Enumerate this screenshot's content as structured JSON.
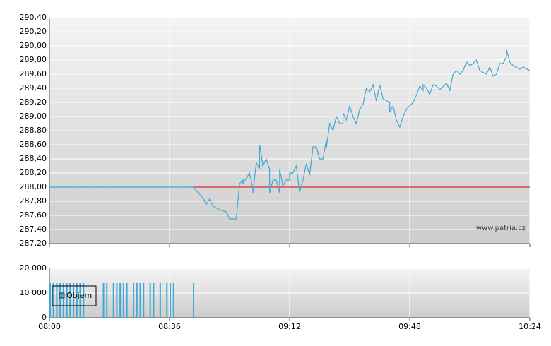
{
  "chart_data": [
    {
      "type": "line",
      "x": [
        "08:00",
        "08:43",
        "08:46",
        "08:47",
        "08:48",
        "08:49",
        "08:51",
        "08:53",
        "08:54",
        "08:56",
        "08:57",
        "08:58",
        "08:58",
        "09:00",
        "09:01",
        "09:01",
        "09:02",
        "09:03",
        "09:03",
        "09:04",
        "09:05",
        "09:06",
        "09:06",
        "09:07",
        "09:08",
        "09:09",
        "09:09",
        "09:10",
        "09:11",
        "09:12",
        "09:12",
        "09:13",
        "09:14",
        "09:15",
        "09:16",
        "09:17",
        "09:18",
        "09:19",
        "09:20",
        "09:21",
        "09:22",
        "09:23",
        "09:23",
        "09:24",
        "09:25",
        "09:26",
        "09:27",
        "09:28",
        "09:28",
        "09:29",
        "09:30",
        "09:31",
        "09:32",
        "09:33",
        "09:34",
        "09:35",
        "09:36",
        "09:37",
        "09:38",
        "09:39",
        "09:40",
        "09:42",
        "09:42",
        "09:43",
        "09:44",
        "09:45",
        "09:46",
        "09:47",
        "09:48",
        "09:49",
        "09:50",
        "09:51",
        "09:52",
        "09:52",
        "09:53",
        "09:54",
        "09:55",
        "09:56",
        "09:57",
        "09:59",
        "10:00",
        "10:01",
        "10:02",
        "10:03",
        "10:04",
        "10:05",
        "10:06",
        "10:07",
        "10:08",
        "10:09",
        "10:11",
        "10:12",
        "10:13",
        "10:14",
        "10:15",
        "10:16",
        "10:17",
        "10:17",
        "10:18",
        "10:19",
        "10:21",
        "10:22",
        "10:24"
      ],
      "values": [
        288.0,
        288.0,
        287.85,
        287.75,
        287.83,
        287.73,
        287.68,
        287.65,
        287.55,
        287.55,
        288.05,
        288.1,
        288.05,
        288.2,
        287.97,
        287.92,
        288.35,
        288.25,
        288.6,
        288.3,
        288.4,
        288.25,
        287.92,
        288.1,
        288.1,
        287.92,
        288.25,
        288.02,
        288.1,
        288.1,
        288.2,
        288.2,
        288.3,
        287.93,
        288.1,
        288.33,
        288.17,
        288.57,
        288.57,
        288.4,
        288.4,
        288.67,
        288.55,
        288.9,
        288.8,
        289.0,
        288.9,
        288.9,
        289.05,
        288.95,
        289.15,
        289.0,
        288.9,
        289.1,
        289.17,
        289.4,
        289.35,
        289.45,
        289.22,
        289.45,
        289.25,
        289.2,
        289.07,
        289.15,
        288.95,
        288.85,
        289.0,
        289.1,
        289.15,
        289.2,
        289.3,
        289.43,
        289.37,
        289.45,
        289.4,
        289.32,
        289.45,
        289.43,
        289.38,
        289.47,
        289.37,
        289.6,
        289.65,
        289.6,
        289.65,
        289.77,
        289.72,
        289.75,
        289.8,
        289.65,
        289.6,
        289.7,
        289.57,
        289.6,
        289.75,
        289.75,
        289.85,
        289.95,
        289.77,
        289.72,
        289.67,
        289.7,
        289.65
      ],
      "color": "#3fa9d5",
      "reference_line": {
        "value": 288.0,
        "color": "#e00000"
      },
      "xlim": [
        "08:00",
        "10:24"
      ],
      "ylim": [
        287.2,
        290.4
      ],
      "yticks": [
        {
          "value": 287.2,
          "label": "287,20"
        },
        {
          "value": 287.4,
          "label": "287,40"
        },
        {
          "value": 287.6,
          "label": "287,60"
        },
        {
          "value": 287.8,
          "label": "287,80"
        },
        {
          "value": 288.0,
          "label": "288,00"
        },
        {
          "value": 288.2,
          "label": "288,20"
        },
        {
          "value": 288.4,
          "label": "288,40"
        },
        {
          "value": 288.6,
          "label": "288,60"
        },
        {
          "value": 288.8,
          "label": "288,80"
        },
        {
          "value": 289.0,
          "label": "289,00"
        },
        {
          "value": 289.2,
          "label": "289,20"
        },
        {
          "value": 289.4,
          "label": "289,40"
        },
        {
          "value": 289.6,
          "label": "289,60"
        },
        {
          "value": 289.8,
          "label": "289,80"
        },
        {
          "value": 290.0,
          "label": "290,00"
        },
        {
          "value": 290.2,
          "label": "290,20"
        },
        {
          "value": 290.4,
          "label": "290,40"
        }
      ],
      "grid": true,
      "watermark": "www.patria.cz"
    },
    {
      "type": "bar",
      "x": [
        "08:00",
        "08:01",
        "08:02",
        "08:03",
        "08:04",
        "08:05",
        "08:06",
        "08:07",
        "08:08",
        "08:09",
        "08:10",
        "08:16",
        "08:17",
        "08:19",
        "08:20",
        "08:21",
        "08:22",
        "08:23",
        "08:25",
        "08:26",
        "08:27",
        "08:28",
        "08:30",
        "08:31",
        "08:33",
        "08:35",
        "08:36",
        "08:37",
        "08:43"
      ],
      "series": [
        {
          "name": "Objem",
          "color": "#3fa9d5",
          "values": [
            14000,
            14000,
            14000,
            14000,
            14000,
            14000,
            14000,
            14000,
            14000,
            14000,
            14000,
            14000,
            14000,
            14000,
            14000,
            14000,
            14000,
            14000,
            14000,
            14000,
            14000,
            14000,
            14000,
            14000,
            14000,
            14000,
            14000,
            14000,
            14000
          ]
        }
      ],
      "xlim": [
        "08:00",
        "10:24"
      ],
      "xticks": [
        "08:00",
        "08:36",
        "09:12",
        "09:48",
        "10:24"
      ],
      "ylim": [
        0,
        20000
      ],
      "yticks": [
        0,
        {
          "value": 10000,
          "label": "10 000"
        },
        {
          "value": 20000,
          "label": "20 000"
        }
      ],
      "grid": true,
      "legend": "top-left"
    }
  ]
}
